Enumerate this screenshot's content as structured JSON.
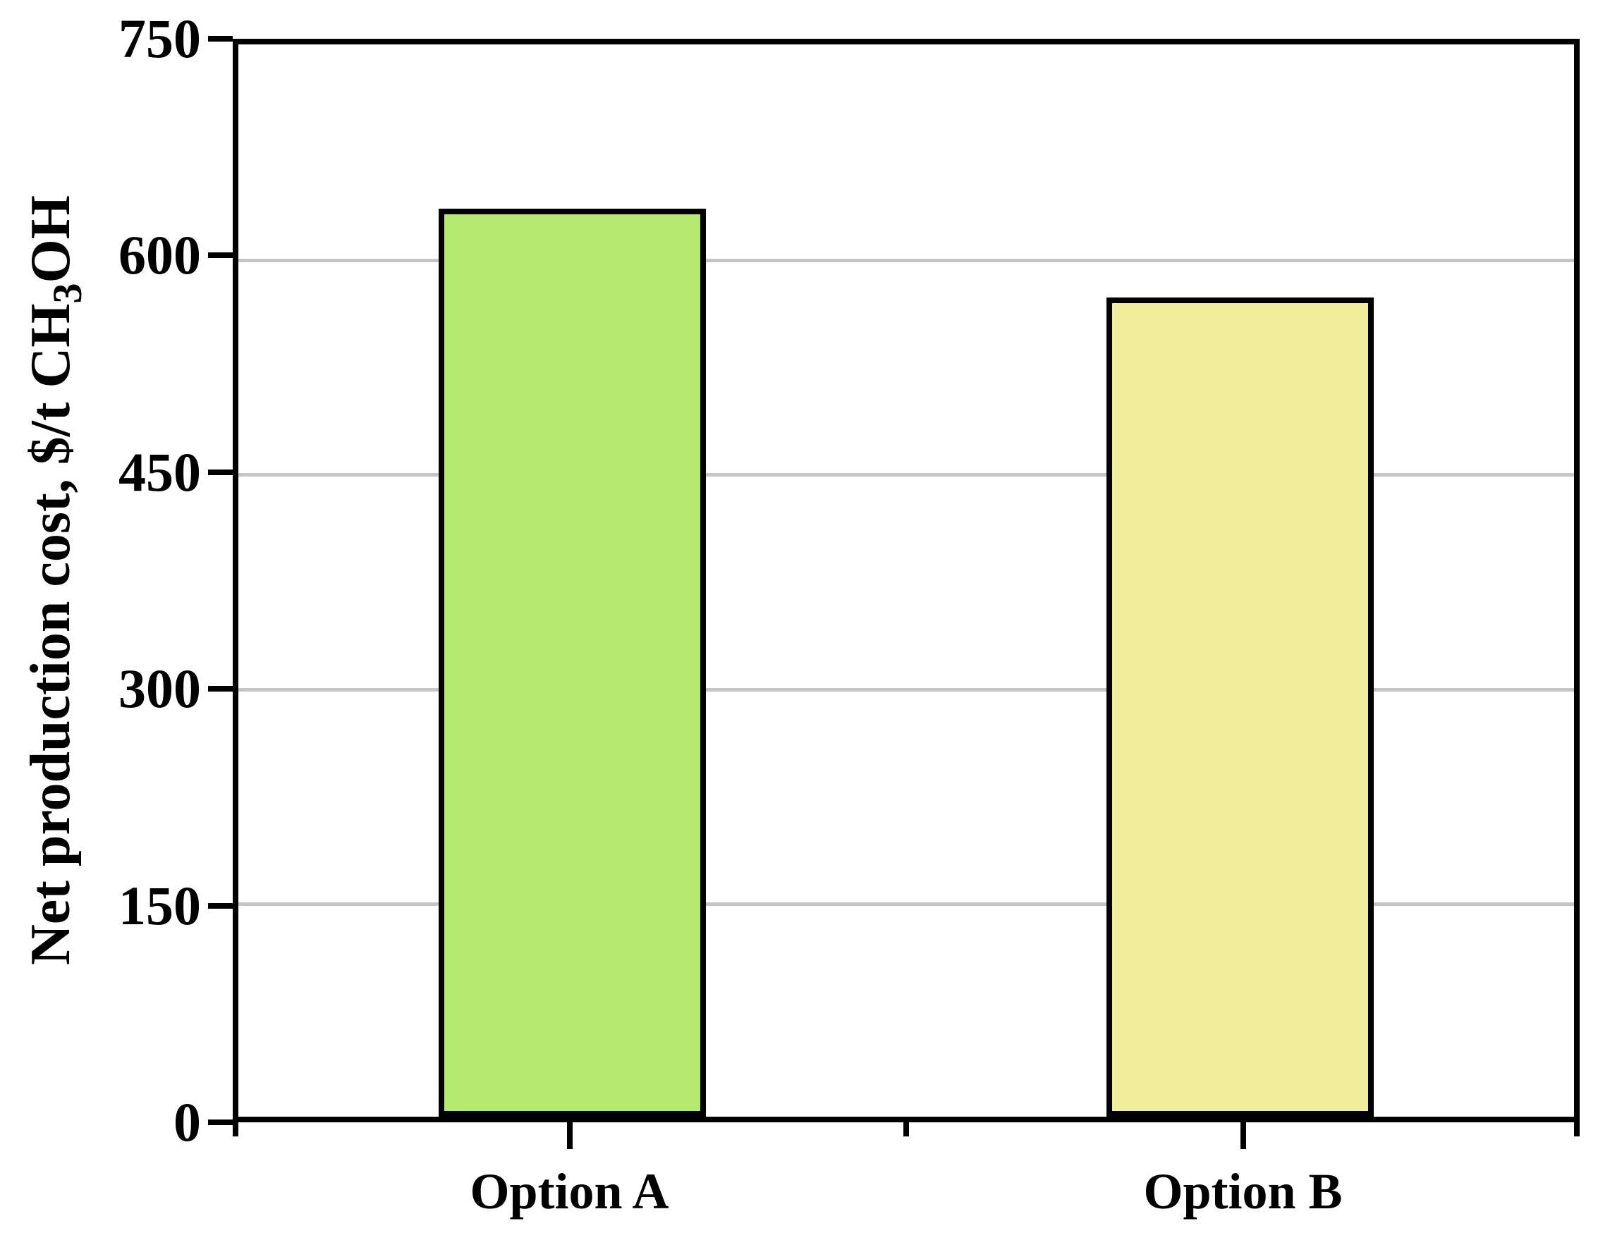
{
  "chart_data": {
    "type": "bar",
    "title": "",
    "categories": [
      "Option A",
      "Option B"
    ],
    "values": [
      635,
      573
    ],
    "ylabel": "Net production cost, $/t CH3OH",
    "ylabel_rich": {
      "prefix": "Net production cost, $/t CH",
      "subscript": "3",
      "suffix": "OH"
    },
    "xlabel": "",
    "ylim": [
      0,
      750
    ],
    "yticks": [
      0,
      150,
      300,
      450,
      600,
      750
    ],
    "gridline_values": [
      150,
      300,
      450,
      600
    ],
    "grid": "horizontal",
    "legend": "none",
    "bar_colors": [
      "#b5ea6e",
      "#f0ee9a"
    ],
    "bar_border_color": "#000000",
    "grid_color": "#c6c6c6",
    "axis_color": "#000000",
    "text_color": "#000000",
    "background_color": "#ffffff"
  }
}
